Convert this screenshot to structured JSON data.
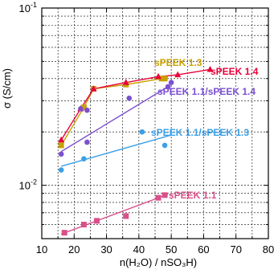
{
  "chart_data": {
    "type": "scatter",
    "title": "",
    "xlabel": "n(H₂O) / nSO₃H)",
    "ylabel": "σ (S/cm)",
    "xlim": [
      10,
      80
    ],
    "ylim": [
      0.005,
      0.1
    ],
    "yscale": "log",
    "grid": true,
    "x_ticks": [
      "10",
      "20",
      "30",
      "40",
      "50",
      "60",
      "70",
      "80"
    ],
    "y_ticks": [
      {
        "base": "10",
        "exp": "-1"
      },
      {
        "base": "10",
        "exp": "-2"
      }
    ],
    "series": [
      {
        "name": "sPEEK 1.3",
        "color": "#c9a000",
        "marker": "square",
        "x": [
          16,
          23,
          26,
          36,
          47,
          48
        ],
        "y": [
          0.0168,
          0.0275,
          0.035,
          0.037,
          0.04,
          0.04
        ],
        "fit_x": [
          16,
          23,
          26,
          36,
          47,
          49
        ],
        "fit_y": [
          0.0168,
          0.0275,
          0.035,
          0.037,
          0.04,
          0.041
        ]
      },
      {
        "name": "sPEEK 1.4",
        "color": "#e8003a",
        "marker": "triangle",
        "x": [
          16,
          22,
          26,
          36,
          46,
          52,
          62
        ],
        "y": [
          0.018,
          0.027,
          0.035,
          0.038,
          0.041,
          0.042,
          0.045
        ],
        "fit_x": [
          16,
          22,
          26,
          36,
          46,
          52,
          62
        ],
        "fit_y": [
          0.018,
          0.027,
          0.035,
          0.038,
          0.041,
          0.042,
          0.045
        ]
      },
      {
        "name": "sPEEK 1.1/sPEEK 1.4",
        "color": "#7b50d0",
        "marker": "circle",
        "x": [
          16,
          22,
          24,
          24,
          37,
          49,
          50
        ],
        "y": [
          0.015,
          0.027,
          0.0265,
          0.0175,
          0.031,
          0.036,
          0.038
        ],
        "fit_x": [
          16,
          49
        ],
        "fit_y": [
          0.0155,
          0.036
        ]
      },
      {
        "name": "sPEEK 1.1/sPEEK 1.3",
        "color": "#3aa0e8",
        "marker": "circle",
        "x": [
          16,
          23,
          41,
          48
        ],
        "y": [
          0.0122,
          0.0141,
          0.02,
          0.0168
        ],
        "fit_x": [
          16,
          50
        ],
        "fit_y": [
          0.0128,
          0.0192
        ]
      },
      {
        "name": "sPEEK 1.1",
        "color": "#d9508a",
        "marker": "square",
        "x": [
          17,
          23,
          27,
          36,
          46,
          48
        ],
        "y": [
          0.0054,
          0.006,
          0.0063,
          0.0067,
          0.0085,
          0.0088
        ],
        "fit_x": [
          16,
          49
        ],
        "fit_y": [
          0.0053,
          0.0089
        ]
      }
    ]
  }
}
